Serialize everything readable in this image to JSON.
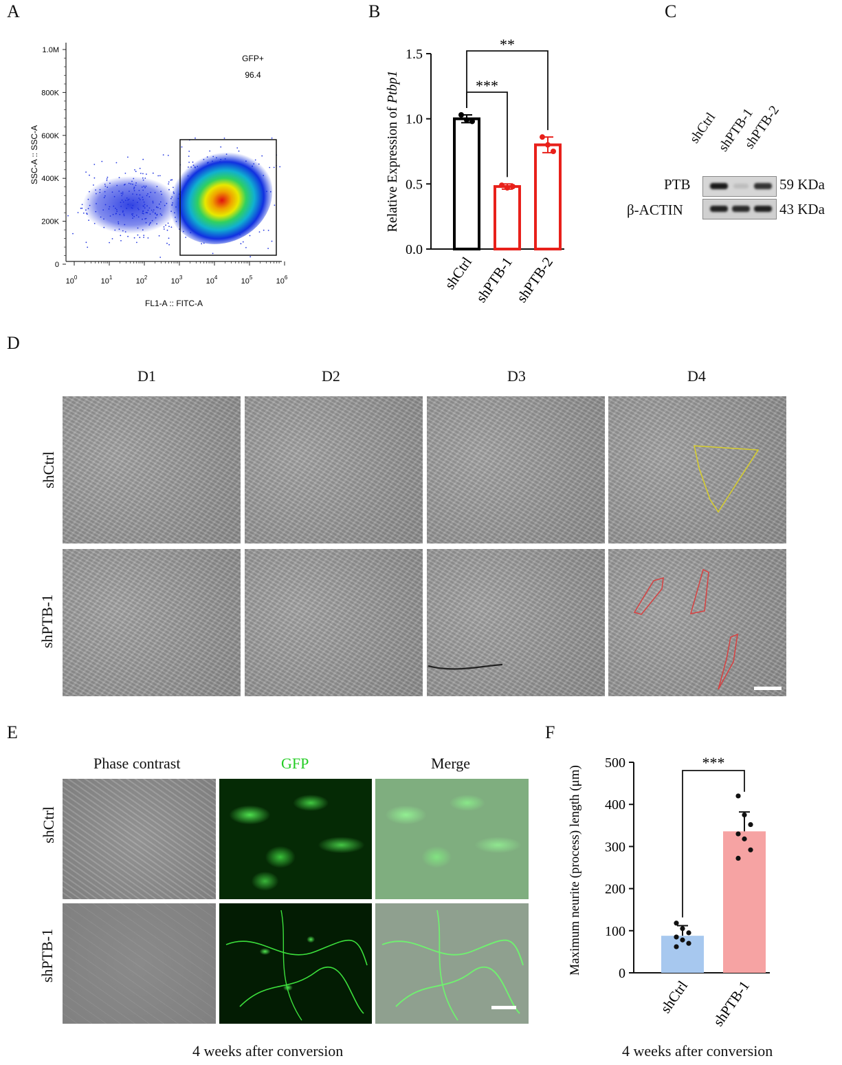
{
  "panels": {
    "A": {
      "letter": "A",
      "gate_label": "GFP+",
      "gate_value": "96.4",
      "xlabel": "FL1-A :: FITC-A",
      "ylabel": "SSC-A :: SSC-A",
      "y_ticks": [
        "1.0M",
        "800K",
        "600K",
        "400K",
        "200K",
        "0"
      ],
      "x_ticks": [
        {
          "base": "10",
          "exp": "0"
        },
        {
          "base": "10",
          "exp": "1"
        },
        {
          "base": "10",
          "exp": "2"
        },
        {
          "base": "10",
          "exp": "3"
        },
        {
          "base": "10",
          "exp": "4"
        },
        {
          "base": "10",
          "exp": "5"
        },
        {
          "base": "10",
          "exp": "6"
        }
      ]
    },
    "B": {
      "letter": "B",
      "ylabel_prefix": "Relative Expression of ",
      "ylabel_gene": "Ptbp1",
      "y_ticks": [
        "1.5",
        "1.0",
        "0.5",
        "0.0"
      ],
      "sig_1": "***",
      "sig_2": "**"
    },
    "C": {
      "letter": "C",
      "lanes": [
        "shCtrl",
        "shPTB-1",
        "shPTB-2"
      ],
      "row1_label": "PTB",
      "row1_size": "59 KDa",
      "row2_label": "β-ACTIN",
      "row2_size": "43 KDa"
    },
    "D": {
      "letter": "D",
      "columns": [
        "D1",
        "D2",
        "D3",
        "D4"
      ],
      "rows": [
        "shCtrl",
        "shPTB-1"
      ]
    },
    "E": {
      "letter": "E",
      "columns": [
        "Phase contrast",
        "GFP",
        "Merge"
      ],
      "rows": [
        "shCtrl",
        "shPTB-1"
      ],
      "caption": "4 weeks after conversion",
      "gfp_color": "#22cc22"
    },
    "F": {
      "letter": "F",
      "ylabel": "Maximum neurite (process) length (μm)",
      "y_ticks": [
        "500",
        "400",
        "300",
        "200",
        "100",
        "0"
      ],
      "sig": "***",
      "caption": "4 weeks after conversion"
    }
  },
  "chart_data": [
    {
      "type": "bar",
      "panel": "B",
      "categories": [
        "shCtrl",
        "shPTB-1",
        "shPTB-2"
      ],
      "values": [
        1.0,
        0.48,
        0.8
      ],
      "errors": [
        0.03,
        0.02,
        0.06
      ],
      "points": [
        [
          1.03,
          0.99,
          0.98
        ],
        [
          0.49,
          0.47,
          0.48
        ],
        [
          0.86,
          0.8,
          0.75
        ]
      ],
      "bar_colors": [
        "#000000",
        "#e8201a",
        "#e8201a"
      ],
      "ylim": [
        0,
        1.5
      ],
      "comparisons": [
        {
          "from": "shCtrl",
          "to": "shPTB-1",
          "label": "***"
        },
        {
          "from": "shCtrl",
          "to": "shPTB-2",
          "label": "**"
        }
      ]
    },
    {
      "type": "bar",
      "panel": "F",
      "categories": [
        "shCtrl",
        "shPTB-1"
      ],
      "values": [
        88,
        336
      ],
      "errors": [
        24,
        46
      ],
      "points": [
        [
          118,
          105,
          95,
          85,
          78,
          70,
          62
        ],
        [
          420,
          375,
          352,
          330,
          318,
          292,
          272
        ]
      ],
      "bar_colors": [
        "#a7c8ef",
        "#f6a3a3"
      ],
      "ylim": [
        0,
        500
      ],
      "comparisons": [
        {
          "from": "shCtrl",
          "to": "shPTB-1",
          "label": "***"
        }
      ]
    }
  ]
}
